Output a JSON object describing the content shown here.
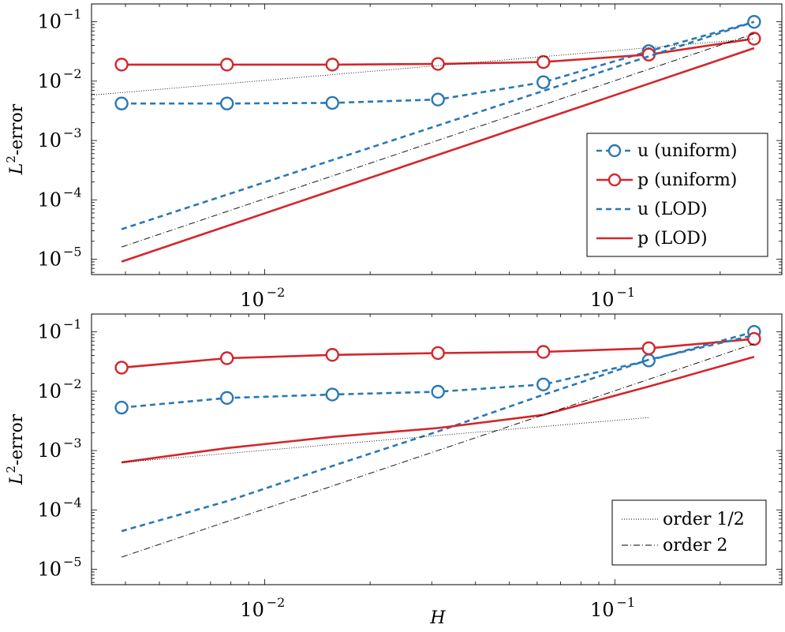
{
  "colors": {
    "u": "#2a78b4",
    "p": "#d3262b",
    "ref": "#000000"
  },
  "chart_data": [
    {
      "type": "line",
      "xscale": "log",
      "yscale": "log",
      "xlim": [
        0.0032,
        0.3
      ],
      "ylim": [
        5.5e-06,
        0.2
      ],
      "xticks": [
        {
          "value": 0.01,
          "base": "10",
          "exp": "−2"
        },
        {
          "value": 0.1,
          "base": "10",
          "exp": "−1"
        }
      ],
      "yticks": [
        {
          "value": 0.1,
          "base": "10",
          "exp": "−1"
        },
        {
          "value": 0.01,
          "base": "10",
          "exp": "−2"
        },
        {
          "value": 0.001,
          "base": "10",
          "exp": "−3"
        },
        {
          "value": 0.0001,
          "base": "10",
          "exp": "−4"
        },
        {
          "value": 1e-05,
          "base": "10",
          "exp": "−5"
        }
      ],
      "ylabel": {
        "main": "L",
        "sup": "2",
        "rest": "-error"
      },
      "xlabel": "",
      "legend_position": "right",
      "series": [
        {
          "name": "u (uniform)",
          "color": "u",
          "dash": "7,5",
          "markers": true,
          "x": [
            0.0039,
            0.0078,
            0.0156,
            0.03125,
            0.0625,
            0.125,
            0.25
          ],
          "y": [
            0.0042,
            0.0042,
            0.0043,
            0.0049,
            0.0096,
            0.032,
            0.1
          ]
        },
        {
          "name": "p (uniform)",
          "color": "p",
          "dash": "",
          "markers": true,
          "x": [
            0.0039,
            0.0078,
            0.0156,
            0.03125,
            0.0625,
            0.125,
            0.25
          ],
          "y": [
            0.019,
            0.019,
            0.019,
            0.0195,
            0.021,
            0.028,
            0.052
          ]
        },
        {
          "name": "u (LOD)",
          "color": "u",
          "dash": "7,5",
          "markers": false,
          "x": [
            0.0039,
            0.25
          ],
          "y": [
            3.2e-05,
            0.1
          ]
        },
        {
          "name": "p (LOD)",
          "color": "p",
          "dash": "",
          "markers": false,
          "x": [
            0.0039,
            0.25
          ],
          "y": [
            9.1e-06,
            0.036
          ]
        },
        {
          "name": "order 1/2",
          "color": "ref",
          "dash": "1,2",
          "markers": false,
          "thin": true,
          "x": [
            0.0032,
            0.25
          ],
          "y": [
            0.0058,
            0.052
          ]
        },
        {
          "name": "order 2",
          "color": "ref",
          "dash": "8,3,1,3",
          "markers": false,
          "thin": true,
          "x": [
            0.0039,
            0.25
          ],
          "y": [
            1.6e-05,
            0.063
          ]
        }
      ],
      "legend": [
        "u (uniform)",
        "p (uniform)",
        "u (LOD)",
        "p (LOD)"
      ]
    },
    {
      "type": "line",
      "xscale": "log",
      "yscale": "log",
      "xlim": [
        0.0032,
        0.3
      ],
      "ylim": [
        5.5e-06,
        0.2
      ],
      "xticks": [
        {
          "value": 0.01,
          "base": "10",
          "exp": "−2"
        },
        {
          "value": 0.1,
          "base": "10",
          "exp": "−1"
        }
      ],
      "yticks": [
        {
          "value": 0.1,
          "base": "10",
          "exp": "−1"
        },
        {
          "value": 0.01,
          "base": "10",
          "exp": "−2"
        },
        {
          "value": 0.001,
          "base": "10",
          "exp": "−3"
        },
        {
          "value": 0.0001,
          "base": "10",
          "exp": "−4"
        },
        {
          "value": 1e-05,
          "base": "10",
          "exp": "−5"
        }
      ],
      "ylabel": {
        "main": "L",
        "sup": "2",
        "rest": "-error"
      },
      "xlabel": "H",
      "legend_position": "bottom-right",
      "series": [
        {
          "name": "u (uniform)",
          "color": "u",
          "dash": "7,5",
          "markers": true,
          "x": [
            0.0039,
            0.0078,
            0.0156,
            0.03125,
            0.0625,
            0.125,
            0.25
          ],
          "y": [
            0.0053,
            0.0077,
            0.0088,
            0.0098,
            0.013,
            0.033,
            0.1
          ]
        },
        {
          "name": "p (uniform)",
          "color": "p",
          "dash": "",
          "markers": true,
          "x": [
            0.0039,
            0.0078,
            0.0156,
            0.03125,
            0.0625,
            0.125,
            0.25
          ],
          "y": [
            0.025,
            0.036,
            0.041,
            0.044,
            0.046,
            0.053,
            0.076
          ]
        },
        {
          "name": "u (LOD)",
          "color": "u",
          "dash": "7,5",
          "markers": false,
          "x": [
            0.0039,
            0.0078,
            0.0156,
            0.03125,
            0.0625,
            0.125,
            0.25
          ],
          "y": [
            4.4e-05,
            0.00014,
            0.00055,
            0.0021,
            0.0087,
            0.034,
            0.088
          ]
        },
        {
          "name": "p (LOD)",
          "color": "p",
          "dash": "",
          "markers": false,
          "x": [
            0.0039,
            0.0078,
            0.0156,
            0.03125,
            0.0625,
            0.125,
            0.25
          ],
          "y": [
            0.00063,
            0.0011,
            0.0017,
            0.0024,
            0.004,
            0.012,
            0.038
          ]
        },
        {
          "name": "order 1/2",
          "color": "ref",
          "dash": "1,2",
          "markers": false,
          "thin": true,
          "x": [
            0.0039,
            0.125
          ],
          "y": [
            0.00063,
            0.0036
          ]
        },
        {
          "name": "order 2",
          "color": "ref",
          "dash": "8,3,1,3",
          "markers": false,
          "thin": true,
          "x": [
            0.0039,
            0.25
          ],
          "y": [
            1.6e-05,
            0.063
          ]
        }
      ],
      "legend": [
        "order 1/2",
        "order 2"
      ]
    }
  ]
}
